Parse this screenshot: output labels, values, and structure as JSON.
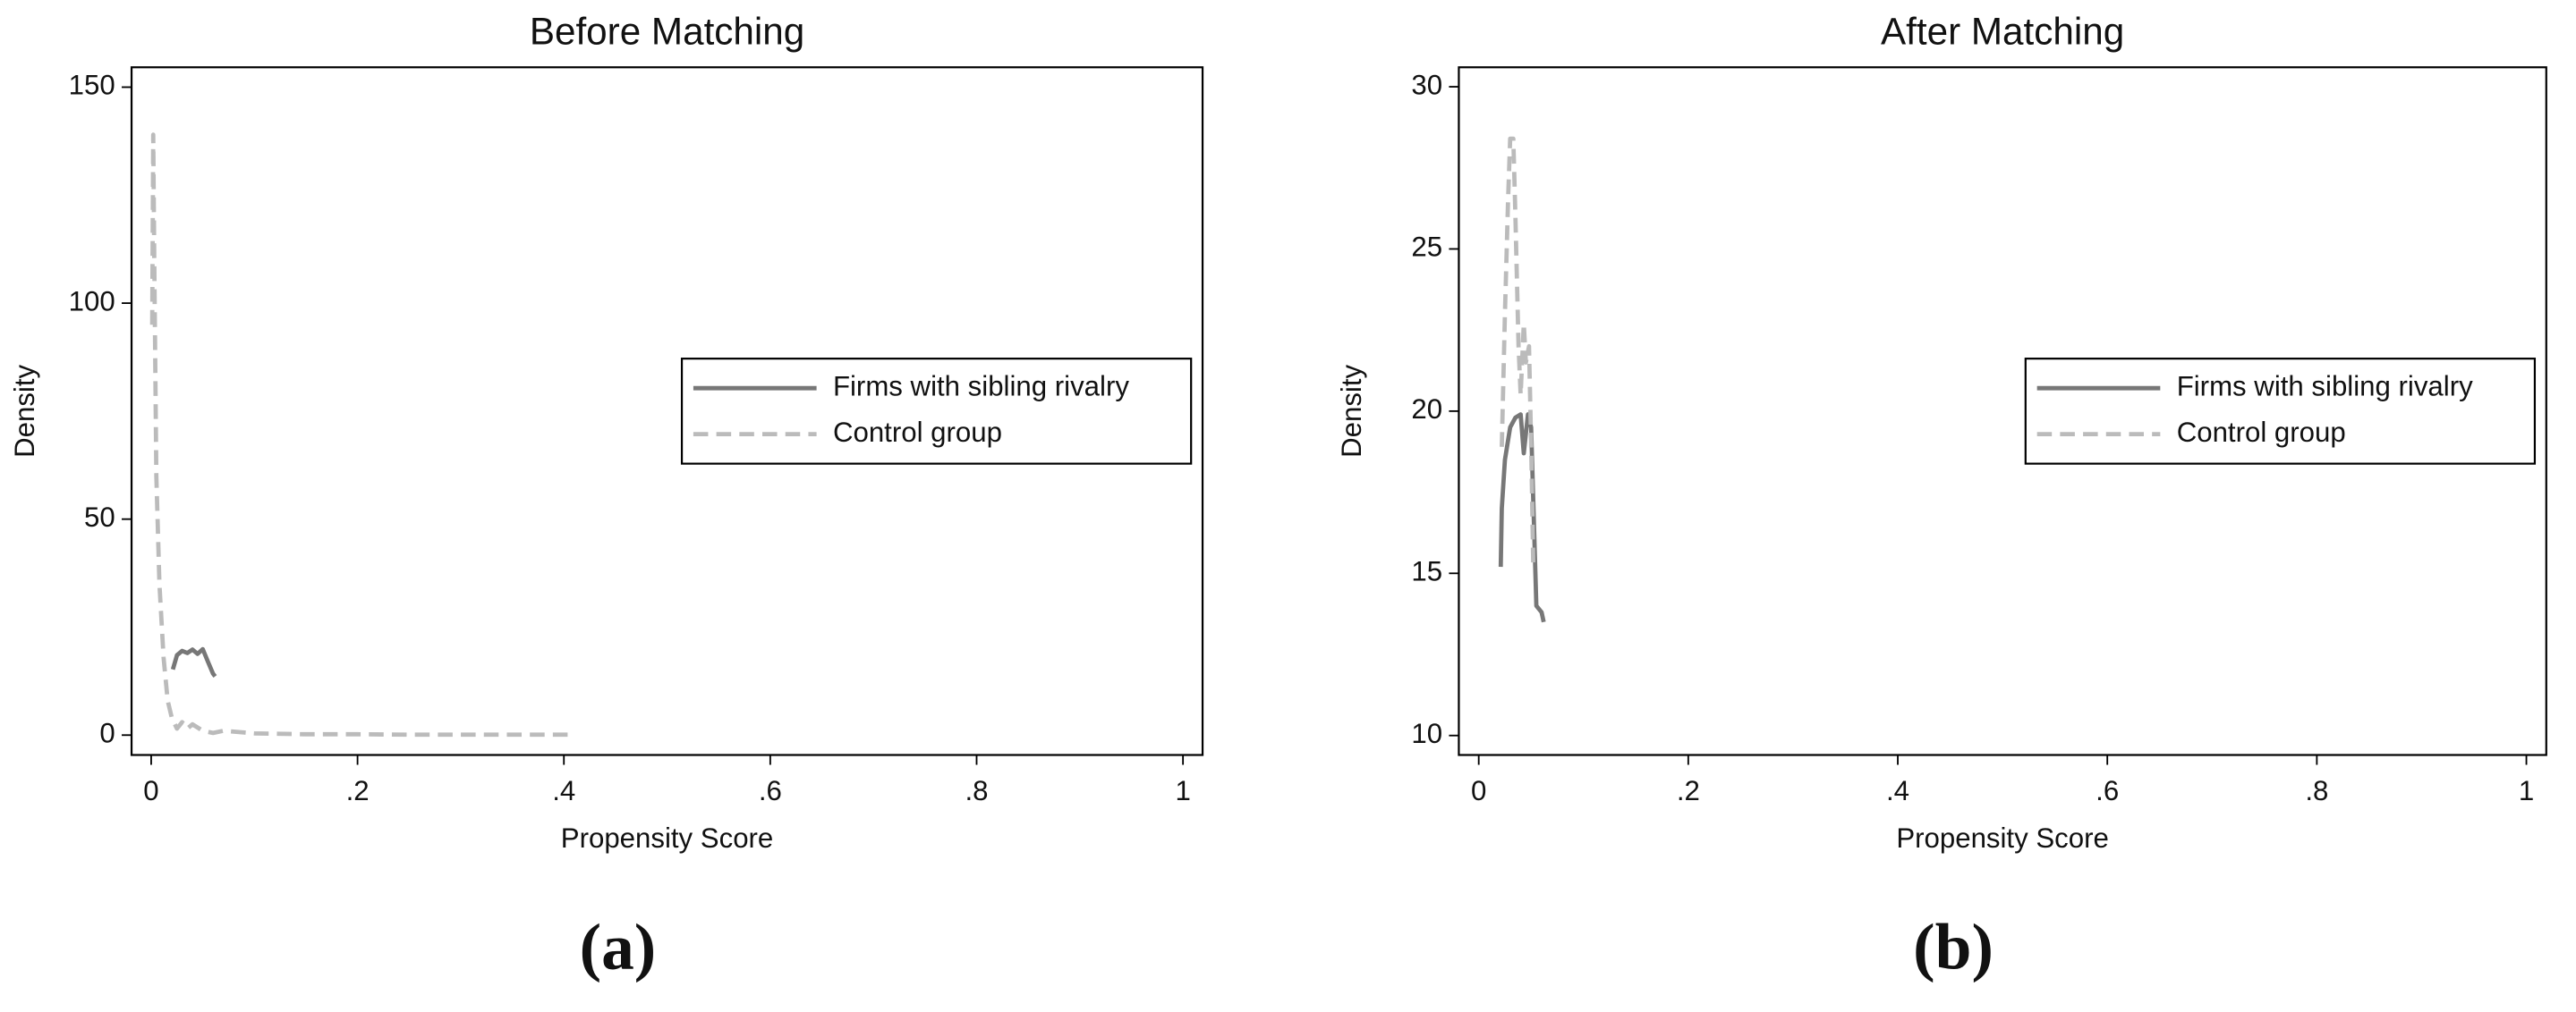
{
  "chart_data": [
    {
      "type": "line",
      "title": "Before Matching",
      "x_label": "Propensity Score",
      "y_label": "Density",
      "caption": "(a)",
      "xlim": [
        -0.019,
        1.019
      ],
      "ylim": [
        -4.6,
        154.6
      ],
      "xticks": [
        0,
        {
          "value": 0.2,
          "label": ".2"
        },
        {
          "value": 0.4,
          "label": ".4"
        },
        {
          "value": 0.6,
          "label": ".6"
        },
        {
          "value": 0.8,
          "label": ".8"
        },
        1
      ],
      "yticks": [
        0,
        50,
        100,
        150
      ],
      "grid": false,
      "legend": "right",
      "series": [
        {
          "name": "Firms with sibling rivalry",
          "color": "#777777",
          "dash": false,
          "x": [
            0.021,
            0.025,
            0.03,
            0.035,
            0.04,
            0.045,
            0.05,
            0.055,
            0.06,
            0.062
          ],
          "values": [
            15.2,
            18.5,
            19.5,
            19.0,
            19.8,
            18.8,
            19.9,
            17,
            14.2,
            13.6
          ]
        },
        {
          "name": "Control group",
          "color": "#bbbbbb",
          "dash": true,
          "x": [
            0.001,
            0.002,
            0.003,
            0.005,
            0.008,
            0.012,
            0.016,
            0.02,
            0.025,
            0.03,
            0.035,
            0.04,
            0.05,
            0.06,
            0.07,
            0.08,
            0.1,
            0.15,
            0.2,
            0.25,
            0.3,
            0.35,
            0.41
          ],
          "values": [
            95,
            139,
            110,
            60,
            35,
            18,
            8,
            4,
            1.5,
            3,
            1.5,
            2.5,
            1,
            0.5,
            1,
            0.8,
            0.4,
            0.2,
            0.2,
            0.1,
            0.1,
            0.1,
            0.1
          ]
        }
      ]
    },
    {
      "type": "line",
      "title": "After Matching",
      "x_label": "Propensity Score",
      "y_label": "Density",
      "caption": "(b)",
      "xlim": [
        -0.019,
        1.019
      ],
      "ylim": [
        9.4,
        30.6
      ],
      "xticks": [
        0,
        {
          "value": 0.2,
          "label": ".2"
        },
        {
          "value": 0.4,
          "label": ".4"
        },
        {
          "value": 0.6,
          "label": ".6"
        },
        {
          "value": 0.8,
          "label": ".8"
        },
        1
      ],
      "yticks": [
        10,
        15,
        20,
        25,
        30
      ],
      "grid": false,
      "legend": "right",
      "series": [
        {
          "name": "Firms with sibling rivalry",
          "color": "#777777",
          "dash": false,
          "x": [
            0.021,
            0.022,
            0.025,
            0.03,
            0.035,
            0.04,
            0.043,
            0.047,
            0.05,
            0.055,
            0.06,
            0.062
          ],
          "values": [
            15.2,
            17,
            18.5,
            19.5,
            19.8,
            19.9,
            18.7,
            19.9,
            19.5,
            14,
            13.8,
            13.5
          ]
        },
        {
          "name": "Control group",
          "color": "#bbbbbb",
          "dash": true,
          "x": [
            0.022,
            0.025,
            0.028,
            0.03,
            0.033,
            0.035,
            0.038,
            0.04,
            0.043,
            0.045,
            0.048,
            0.05,
            0.052
          ],
          "values": [
            18.9,
            23,
            26.5,
            28.4,
            28.4,
            26,
            22,
            20.5,
            22.7,
            21.5,
            22,
            19,
            15.3
          ]
        }
      ]
    }
  ]
}
